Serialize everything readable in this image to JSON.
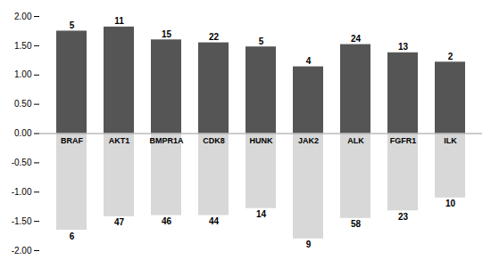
{
  "chart_data": {
    "type": "bar",
    "categories": [
      "BRAF",
      "AKT1",
      "BMPR1A",
      "CDK8",
      "HUNK",
      "JAK2",
      "ALK",
      "FGFR1",
      "ILK"
    ],
    "series": [
      {
        "color": "#555555",
        "values": [
          1.75,
          1.82,
          1.6,
          1.55,
          1.48,
          1.14,
          1.52,
          1.38,
          1.22
        ],
        "counts": [
          5,
          11,
          15,
          22,
          5,
          4,
          24,
          13,
          2
        ]
      },
      {
        "color": "#d8d8d8",
        "values": [
          -1.65,
          -1.42,
          -1.4,
          -1.4,
          -1.28,
          -1.8,
          -1.45,
          -1.32,
          -1.1
        ],
        "counts": [
          6,
          47,
          46,
          44,
          14,
          9,
          58,
          23,
          10
        ]
      }
    ],
    "ylim": [
      -2.0,
      2.0
    ],
    "yticks": [
      {
        "value": -2.0,
        "label": "-2.00"
      },
      {
        "value": -1.5,
        "label": "-1.50"
      },
      {
        "value": -1.0,
        "label": "-1.00"
      },
      {
        "value": -0.5,
        "label": "-0.50"
      },
      {
        "value": 0.0,
        "label": "0.00"
      },
      {
        "value": 0.5,
        "label": "0.50"
      },
      {
        "value": 1.0,
        "label": "1.00"
      },
      {
        "value": 1.5,
        "label": "1.50"
      },
      {
        "value": 2.0,
        "label": "2.00"
      }
    ],
    "grid": false,
    "tick_labels": "y"
  }
}
